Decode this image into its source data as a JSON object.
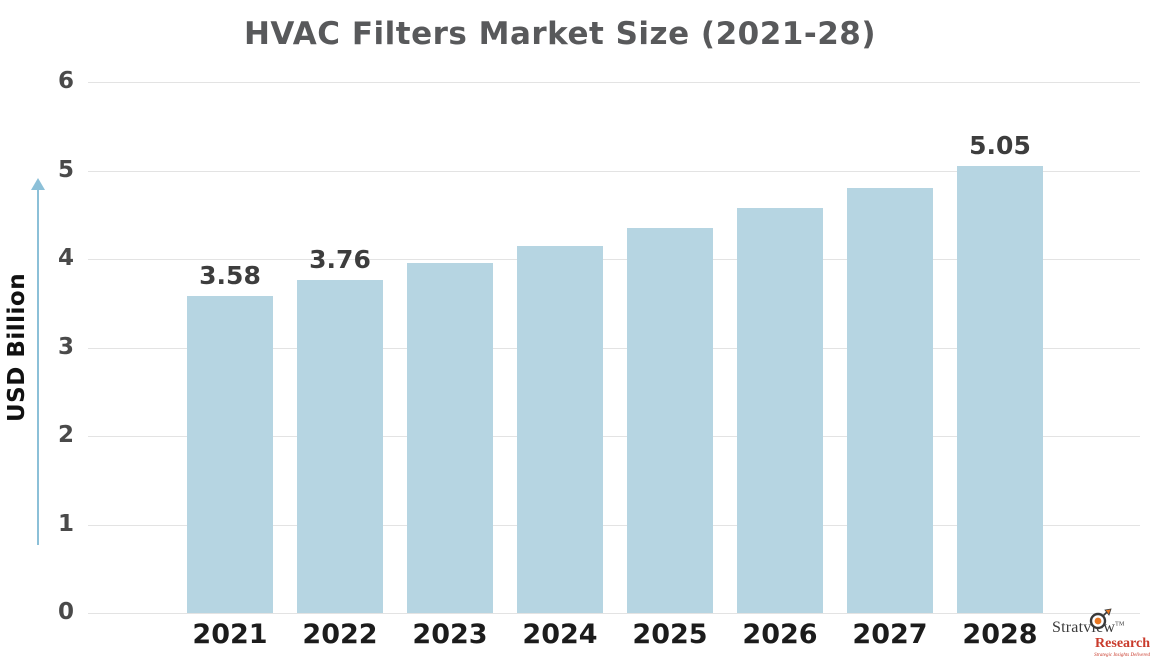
{
  "chart_data": {
    "type": "bar",
    "title": "HVAC Filters Market Size (2021-28)",
    "xlabel": "",
    "ylabel": "USD Billion",
    "categories": [
      "2021",
      "2022",
      "2023",
      "2024",
      "2025",
      "2026",
      "2027",
      "2028"
    ],
    "values": [
      3.58,
      3.76,
      3.95,
      4.15,
      4.35,
      4.58,
      4.8,
      5.05
    ],
    "data_labels": [
      "3.58",
      "3.76",
      "",
      "",
      "",
      "",
      "",
      "5.05"
    ],
    "ylim": [
      0,
      6
    ],
    "yticks": [
      0,
      1,
      2,
      3,
      4,
      5,
      6
    ],
    "grid": true,
    "legend": "none",
    "bar_color": "#b6d5e2",
    "gridline_color": "#e3e3e3",
    "title_color": "#58595b",
    "tick_color": "#4a4a4a",
    "data_label_color": "#3d3d3d",
    "axis_arrow_color": "#8cc0d8"
  },
  "logo": {
    "brand": "Stratview",
    "trademark": "TM",
    "research": "Research",
    "tagline": "Strategic Insights Delivered",
    "icon": "target-dart-icon",
    "brand_color": "#3a3a3a",
    "accent_color": "#c93a2b",
    "icon_color": "#e87722"
  }
}
